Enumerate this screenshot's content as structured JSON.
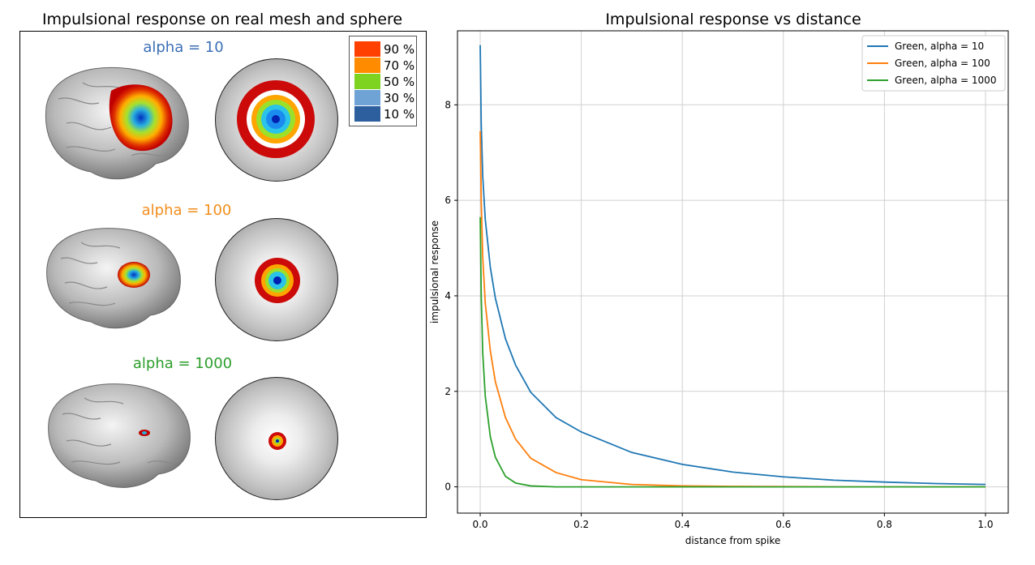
{
  "left_panel": {
    "title": "Impulsional response on real mesh and  sphere",
    "alpha_labels": [
      {
        "text": "alpha = 10",
        "color": "#3b6fb6"
      },
      {
        "text": "alpha = 100",
        "color": "#f28e1c"
      },
      {
        "text": "alpha = 1000",
        "color": "#2c9e2c"
      }
    ],
    "legend": [
      {
        "label": "90 %",
        "color": "#ff4000"
      },
      {
        "label": "70 %",
        "color": "#ff8c00"
      },
      {
        "label": "50 %",
        "color": "#7ed321"
      },
      {
        "label": "30 %",
        "color": "#6fa3d6"
      },
      {
        "label": "10 %",
        "color": "#2d5f9e"
      }
    ]
  },
  "chart_data": {
    "type": "line",
    "title": "Impulsional response vs distance",
    "xlabel": "distance from spike",
    "ylabel": "impulsional response",
    "xlim": [
      -0.045,
      1.045
    ],
    "ylim": [
      -0.55,
      9.55
    ],
    "xticks": [
      0.0,
      0.2,
      0.4,
      0.6,
      0.8,
      1.0
    ],
    "xtick_labels": [
      "0.0",
      "0.2",
      "0.4",
      "0.6",
      "0.8",
      "1.0"
    ],
    "yticks": [
      0,
      2,
      4,
      6,
      8
    ],
    "ytick_labels": [
      "0",
      "2",
      "4",
      "6",
      "8"
    ],
    "grid": true,
    "legend_position": "top-right",
    "series": [
      {
        "name": "Green, alpha = 10",
        "color": "#1f77b4",
        "x": [
          0.0,
          0.002,
          0.005,
          0.01,
          0.02,
          0.03,
          0.05,
          0.07,
          0.1,
          0.15,
          0.2,
          0.3,
          0.4,
          0.5,
          0.6,
          0.7,
          0.8,
          0.9,
          1.0
        ],
        "y": [
          9.25,
          7.6,
          6.5,
          5.6,
          4.6,
          3.95,
          3.1,
          2.55,
          1.98,
          1.45,
          1.15,
          0.72,
          0.47,
          0.31,
          0.21,
          0.14,
          0.1,
          0.07,
          0.05
        ]
      },
      {
        "name": "Green, alpha = 100",
        "color": "#ff7f0e",
        "x": [
          0.0,
          0.002,
          0.005,
          0.01,
          0.02,
          0.03,
          0.05,
          0.07,
          0.1,
          0.15,
          0.2,
          0.3,
          0.4,
          0.5,
          0.6,
          0.7,
          0.8,
          0.9,
          1.0
        ],
        "y": [
          7.45,
          6.0,
          4.8,
          3.85,
          2.85,
          2.2,
          1.45,
          1.0,
          0.6,
          0.3,
          0.15,
          0.05,
          0.02,
          0.01,
          0.005,
          0.0,
          0.0,
          0.0,
          0.0
        ]
      },
      {
        "name": "Green, alpha = 1000",
        "color": "#2ca02c",
        "x": [
          0.0,
          0.002,
          0.005,
          0.01,
          0.02,
          0.03,
          0.05,
          0.07,
          0.1,
          0.15,
          0.2,
          0.3,
          0.4,
          0.5,
          0.6,
          0.7,
          0.8,
          0.9,
          1.0
        ],
        "y": [
          5.65,
          4.0,
          2.8,
          1.9,
          1.05,
          0.62,
          0.22,
          0.08,
          0.02,
          0.0,
          0.0,
          0.0,
          0.0,
          0.0,
          0.0,
          0.0,
          0.0,
          0.0,
          0.0
        ]
      }
    ]
  }
}
